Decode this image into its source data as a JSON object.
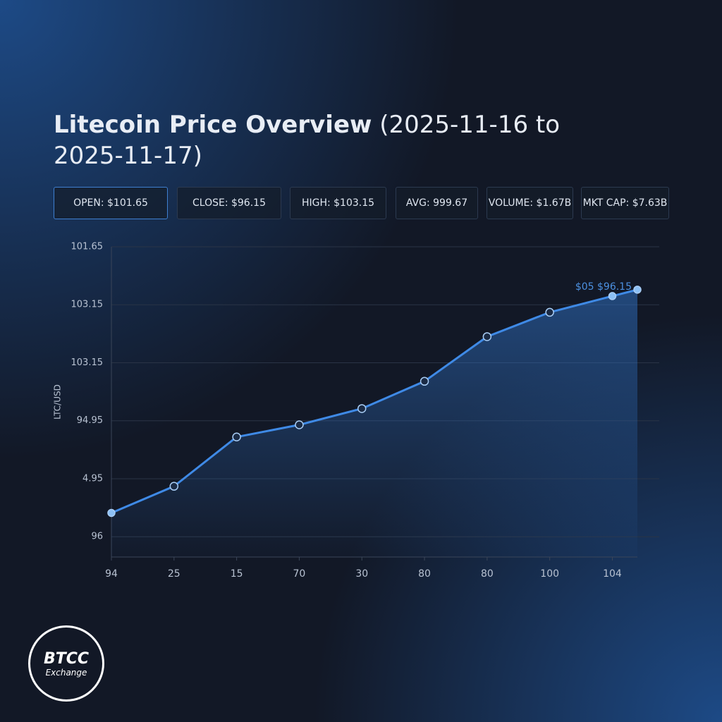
{
  "chart_data": {
    "type": "line",
    "title": "Litecoin Price Overview",
    "subtitle": "(2025-11-16 to 2025-11-17)",
    "y_label": "LTC/USD",
    "x": [
      0,
      1,
      2,
      3,
      4,
      5,
      6,
      7,
      8,
      8.4
    ],
    "values": [
      0.41,
      0.87,
      1.72,
      1.93,
      2.21,
      2.68,
      3.45,
      3.87,
      4.15,
      4.26
    ],
    "color": "#3f8ae6",
    "xlim": [
      0,
      8.4
    ],
    "xticks": [
      {
        "value": 0,
        "label": "94"
      },
      {
        "value": 1,
        "label": "25"
      },
      {
        "value": 2,
        "label": "15"
      },
      {
        "value": 3,
        "label": "70"
      },
      {
        "value": 4,
        "label": "30"
      },
      {
        "value": 5,
        "label": "80"
      },
      {
        "value": 6,
        "label": "80"
      },
      {
        "value": 7,
        "label": "100"
      },
      {
        "value": 8,
        "label": "104"
      }
    ],
    "ylim": [
      -0.35,
      5
    ],
    "yticks": [
      {
        "value": 0,
        "label": "96"
      },
      {
        "value": 1,
        "label": "4.95"
      },
      {
        "value": 2,
        "label": "94.95"
      },
      {
        "value": 3,
        "label": "103.15"
      },
      {
        "value": 4,
        "label": "103.15"
      },
      {
        "value": 5,
        "label": "101.65"
      }
    ],
    "grid": true,
    "annotation": "$05 $96.15"
  },
  "stats": [
    "OPEN: $101.65",
    "CLOSE: $96.15",
    "HIGH: $103.15",
    "AVG: 999.67",
    "VOLUME: $1.67B",
    "MKT CAP: $7.63B"
  ],
  "logo": {
    "name": "BTCC",
    "tagline": "Exchange"
  }
}
